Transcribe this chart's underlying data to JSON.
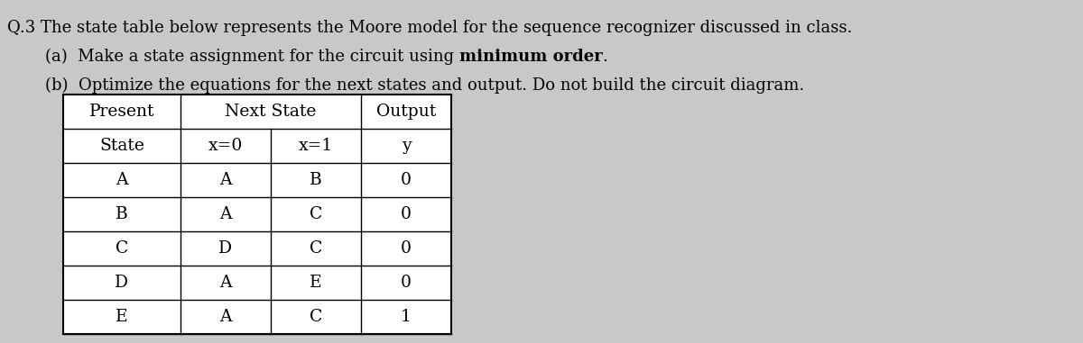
{
  "title_line1": "Q.3 The state table below represents the Moore model for the sequence recognizer discussed in class.",
  "title_line2_pre": "(a)  Make a state assignment for the circuit using ",
  "title_line2_bold": "minimum order",
  "title_line2_post": ".",
  "title_line3": "(b)  Optimize the equations for the next states and output. Do not build the circuit diagram.",
  "col_headers_row1": [
    "Present",
    "Next State",
    "Output"
  ],
  "col_headers_row2": [
    "State",
    "x=0",
    "x=1",
    "y"
  ],
  "rows": [
    [
      "A",
      "A",
      "B",
      "0"
    ],
    [
      "B",
      "A",
      "C",
      "0"
    ],
    [
      "C",
      "D",
      "C",
      "0"
    ],
    [
      "D",
      "A",
      "E",
      "0"
    ],
    [
      "E",
      "A",
      "C",
      "1"
    ]
  ],
  "bg_color": "#c8c8c8",
  "table_bg": "#ffffff",
  "text_color": "#000000",
  "font_size_title": 13.0,
  "font_size_table": 13.5
}
